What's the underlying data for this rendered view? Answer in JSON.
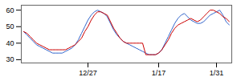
{
  "chart_data": {
    "type": "line",
    "categories": [
      null,
      null,
      null,
      null,
      null,
      null,
      null,
      null,
      null,
      null,
      null,
      null,
      null,
      null,
      null,
      null,
      null,
      null,
      null,
      null,
      "12/27",
      null,
      null,
      null,
      null,
      null,
      null,
      null,
      null,
      null,
      null,
      null,
      null,
      null,
      null,
      null,
      null,
      null,
      null,
      null,
      null,
      null,
      "1/17",
      null,
      null,
      null,
      null,
      null,
      null,
      null,
      null,
      null,
      null,
      null,
      null,
      null,
      null,
      null,
      null,
      null,
      "1/31",
      null,
      null,
      null,
      null
    ],
    "series": [
      {
        "color": "#3366cc",
        "values": [
          47,
          45,
          43,
          41,
          39,
          38,
          37,
          36,
          35,
          34,
          34,
          34,
          34,
          35,
          36,
          37,
          39,
          42,
          46,
          50,
          54,
          57,
          59,
          60,
          59,
          58,
          56,
          52,
          48,
          45,
          43,
          41,
          40,
          39,
          38,
          37,
          36,
          35,
          34,
          33,
          33,
          33,
          34,
          36,
          40,
          44,
          48,
          52,
          55,
          57,
          58,
          56,
          54,
          53,
          52,
          52,
          53,
          55,
          57,
          58,
          59,
          60,
          57,
          53,
          51
        ]
      },
      {
        "color": "#cc0000",
        "values": [
          47,
          46,
          44,
          42,
          40,
          39,
          38,
          37,
          36,
          36,
          36,
          36,
          36,
          36,
          37,
          38,
          39,
          41,
          43,
          47,
          50,
          54,
          57,
          59,
          59,
          58,
          57,
          53,
          49,
          46,
          43,
          41,
          40,
          40,
          40,
          40,
          40,
          40,
          33,
          33,
          33,
          33,
          34,
          36,
          39,
          42,
          46,
          49,
          51,
          52,
          53,
          54,
          55,
          54,
          53,
          54,
          56,
          58,
          60,
          60,
          59,
          58,
          56,
          55,
          53
        ]
      }
    ],
    "ylim": [
      28,
      63
    ],
    "yticks": [
      30,
      40,
      50,
      60
    ],
    "grid": false
  }
}
